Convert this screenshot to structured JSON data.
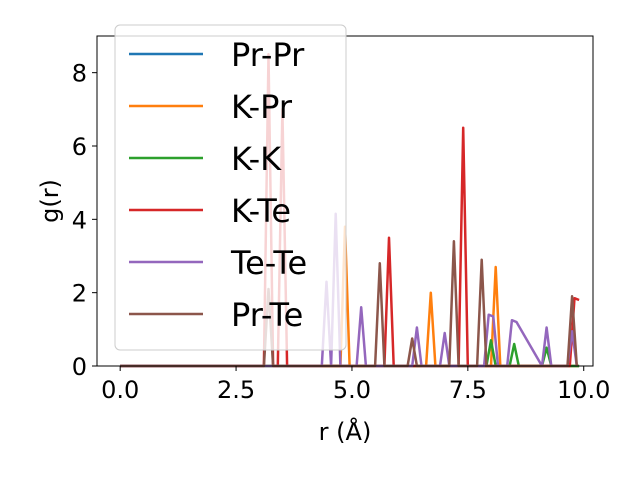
{
  "chart_data": {
    "type": "line",
    "xlabel": "r (Å)",
    "ylabel": "g(r)",
    "xlim": [
      -0.5,
      10.2
    ],
    "ylim": [
      0,
      9
    ],
    "xticks": [
      "0.0",
      "2.5",
      "5.0",
      "7.5",
      "10.0"
    ],
    "xtick_values": [
      0,
      2.5,
      5,
      7.5,
      10
    ],
    "yticks": [
      "0",
      "2",
      "4",
      "6",
      "8"
    ],
    "ytick_values": [
      0,
      2,
      4,
      6,
      8
    ],
    "grid": false,
    "legend_position": "top-left",
    "series": [
      {
        "name": "Pr-Pr",
        "color": "#1f77b4",
        "x": [
          0,
          9.9
        ],
        "y": [
          0,
          0
        ]
      },
      {
        "name": "K-Pr",
        "color": "#ff7f0e",
        "x": [
          0,
          4.75,
          4.85,
          4.95,
          6.6,
          6.7,
          6.8,
          8.0,
          8.1,
          8.2,
          9.9
        ],
        "y": [
          0,
          0,
          3.8,
          0,
          0,
          2.0,
          0,
          0,
          2.7,
          0,
          0
        ]
      },
      {
        "name": "K-K",
        "color": "#2ca02c",
        "x": [
          0,
          7.9,
          8.0,
          8.1,
          8.4,
          8.5,
          8.6,
          9.1,
          9.2,
          9.3,
          9.9
        ],
        "y": [
          0,
          0,
          0.7,
          0,
          0,
          0.6,
          0,
          0,
          0.5,
          0,
          0
        ]
      },
      {
        "name": "K-Te",
        "color": "#d62728",
        "x": [
          0,
          3.1,
          3.2,
          3.3,
          3.4,
          3.5,
          3.6,
          5.7,
          5.8,
          5.9,
          7.3,
          7.4,
          7.5,
          9.7,
          9.8,
          9.9
        ],
        "y": [
          0,
          0,
          8.5,
          0,
          0,
          7.0,
          0,
          0,
          3.5,
          0,
          0,
          6.5,
          0,
          0,
          1.85,
          1.8
        ]
      },
      {
        "name": "Te-Te",
        "color": "#9467bd",
        "x": [
          0,
          4.35,
          4.45,
          4.55,
          4.65,
          4.75,
          5.1,
          5.2,
          5.3,
          6.3,
          6.4,
          6.5,
          6.9,
          7.0,
          7.1,
          7.85,
          7.95,
          8.05,
          8.15,
          8.35,
          8.45,
          8.55,
          9.1,
          9.2,
          9.3,
          9.65,
          9.75,
          9.85
        ],
        "y": [
          0,
          0,
          2.3,
          0,
          4.15,
          0,
          0,
          1.6,
          0,
          0,
          1.05,
          0,
          0,
          0.9,
          0,
          0,
          1.4,
          1.35,
          0,
          0,
          1.25,
          1.2,
          0,
          1.05,
          0,
          0,
          0.95,
          0
        ]
      },
      {
        "name": "Pr-Te",
        "color": "#8c564b",
        "x": [
          0,
          3.1,
          3.2,
          3.3,
          5.5,
          5.6,
          5.7,
          6.2,
          6.3,
          6.4,
          7.1,
          7.2,
          7.3,
          7.7,
          7.8,
          7.9,
          9.65,
          9.75,
          9.85
        ],
        "y": [
          0,
          0,
          2.1,
          0,
          0,
          2.8,
          0,
          0,
          0.75,
          0,
          0,
          3.4,
          0,
          0,
          2.9,
          0,
          0,
          1.9,
          0
        ]
      }
    ]
  }
}
